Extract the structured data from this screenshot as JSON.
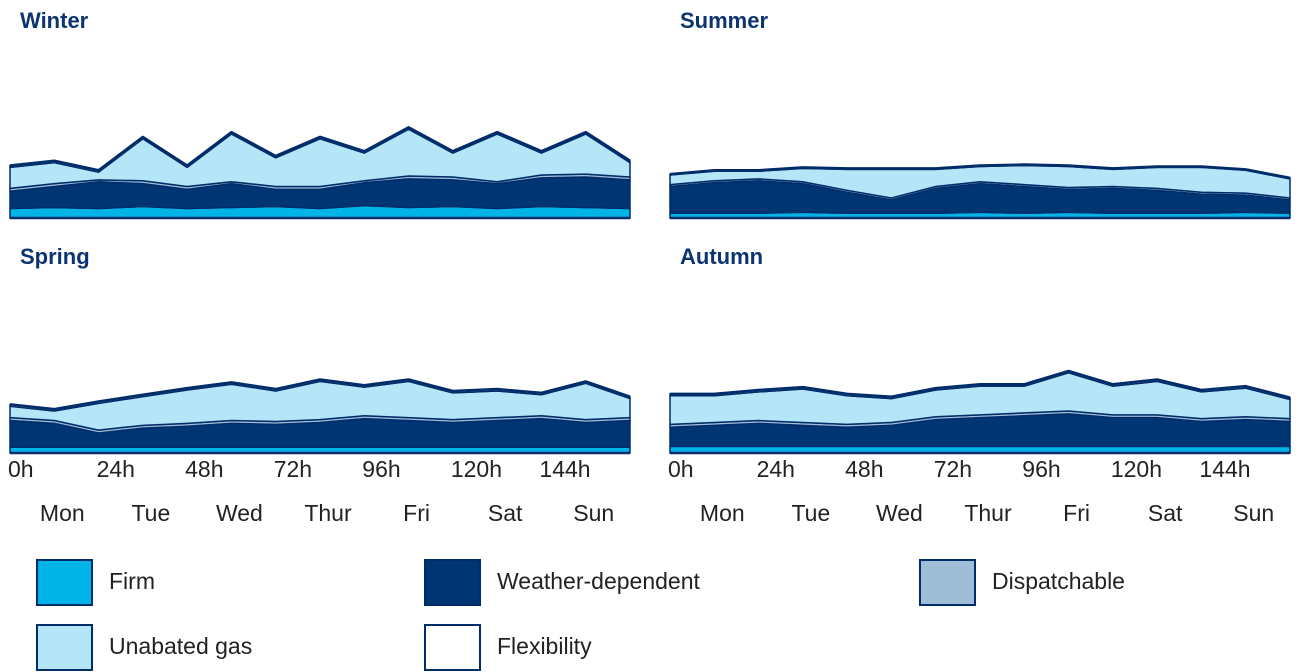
{
  "legend": [
    {
      "name": "Firm",
      "color": "#00b4e8"
    },
    {
      "name": "Weather-dependent",
      "color": "#003574"
    },
    {
      "name": "Dispatchable",
      "color": "#a0bdd8"
    },
    {
      "name": "Unabated gas",
      "color": "#b4e6f8"
    },
    {
      "name": "Flexibility",
      "color": "#ffffff"
    }
  ],
  "chart_data": [
    {
      "type": "stacked_area",
      "title": "Winter",
      "x": [
        0,
        12,
        24,
        36,
        48,
        60,
        72,
        84,
        96,
        108,
        120,
        132,
        144,
        156,
        168
      ],
      "xlim": [
        0,
        168
      ],
      "ylim": [
        0,
        110
      ],
      "series": [
        {
          "values": [
            10,
            11,
            10,
            12,
            10,
            11,
            12,
            10,
            13,
            11,
            12,
            10,
            12,
            11,
            10
          ]
        },
        {
          "values": [
            18,
            22,
            28,
            24,
            20,
            25,
            18,
            20,
            24,
            30,
            28,
            26,
            30,
            32,
            30
          ]
        },
        {
          "values": [
            3,
            3,
            2,
            3,
            3,
            2,
            3,
            3,
            2,
            3,
            3,
            2,
            3,
            3,
            3
          ]
        },
        {
          "values": [
            22,
            22,
            8,
            44,
            20,
            50,
            30,
            50,
            29,
            49,
            25,
            50,
            23,
            42,
            15
          ]
        },
        {
          "values": [
            2,
            2,
            2,
            2,
            2,
            2,
            2,
            2,
            2,
            2,
            2,
            2,
            2,
            2,
            2
          ]
        }
      ]
    },
    {
      "type": "stacked_area",
      "title": "Summer",
      "x": [
        0,
        12,
        24,
        36,
        48,
        60,
        72,
        84,
        96,
        108,
        120,
        132,
        144,
        156,
        168
      ],
      "xlim": [
        0,
        168
      ],
      "ylim": [
        0,
        110
      ],
      "series": [
        {
          "values": [
            5,
            5,
            5,
            6,
            5,
            5,
            5,
            6,
            5,
            6,
            5,
            5,
            5,
            6,
            5
          ]
        },
        {
          "values": [
            28,
            32,
            34,
            30,
            22,
            14,
            26,
            30,
            28,
            24,
            26,
            24,
            20,
            18,
            14
          ]
        },
        {
          "values": [
            2,
            2,
            2,
            2,
            2,
            2,
            2,
            2,
            2,
            2,
            2,
            2,
            2,
            2,
            2
          ]
        },
        {
          "values": [
            10,
            10,
            8,
            14,
            22,
            30,
            18,
            16,
            20,
            22,
            18,
            22,
            26,
            24,
            20
          ]
        },
        {
          "values": [
            1,
            1,
            1,
            1,
            1,
            1,
            1,
            1,
            1,
            1,
            1,
            1,
            1,
            1,
            1
          ]
        }
      ]
    },
    {
      "type": "stacked_area",
      "title": "Spring",
      "x": [
        0,
        12,
        24,
        36,
        48,
        60,
        72,
        84,
        96,
        108,
        120,
        132,
        144,
        156,
        168
      ],
      "xlim": [
        0,
        168
      ],
      "ylim": [
        0,
        110
      ],
      "xticks": [
        {
          "value": 0,
          "label": "0h"
        },
        {
          "value": 24,
          "label": "24h"
        },
        {
          "value": 48,
          "label": "48h"
        },
        {
          "value": 72,
          "label": "72h"
        },
        {
          "value": 96,
          "label": "96h"
        },
        {
          "value": 120,
          "label": "120h"
        },
        {
          "value": 144,
          "label": "144h"
        }
      ],
      "categories": [
        "Mon",
        "Tue",
        "Wed",
        "Thur",
        "Fri",
        "Sat",
        "Sun"
      ],
      "series": [
        {
          "values": [
            6,
            6,
            6,
            6,
            6,
            6,
            6,
            6,
            6,
            6,
            6,
            6,
            6,
            6,
            6
          ]
        },
        {
          "values": [
            28,
            25,
            15,
            20,
            22,
            25,
            24,
            26,
            30,
            28,
            26,
            28,
            30,
            26,
            28
          ]
        },
        {
          "values": [
            3,
            3,
            3,
            3,
            3,
            3,
            3,
            3,
            3,
            3,
            3,
            3,
            3,
            3,
            3
          ]
        },
        {
          "values": [
            12,
            10,
            28,
            30,
            35,
            38,
            32,
            40,
            30,
            38,
            28,
            28,
            22,
            38,
            20
          ]
        },
        {
          "values": [
            2,
            2,
            2,
            2,
            2,
            2,
            2,
            2,
            2,
            2,
            2,
            2,
            2,
            2,
            2
          ]
        }
      ]
    },
    {
      "type": "stacked_area",
      "title": "Autumn",
      "x": [
        0,
        12,
        24,
        36,
        48,
        60,
        72,
        84,
        96,
        108,
        120,
        132,
        144,
        156,
        168
      ],
      "xlim": [
        0,
        168
      ],
      "ylim": [
        0,
        110
      ],
      "xticks": [
        {
          "value": 0,
          "label": "0h"
        },
        {
          "value": 24,
          "label": "24h"
        },
        {
          "value": 48,
          "label": "48h"
        },
        {
          "value": 72,
          "label": "72h"
        },
        {
          "value": 96,
          "label": "96h"
        },
        {
          "value": 120,
          "label": "120h"
        },
        {
          "value": 144,
          "label": "144h"
        }
      ],
      "categories": [
        "Mon",
        "Tue",
        "Wed",
        "Thur",
        "Fri",
        "Sat",
        "Sun"
      ],
      "series": [
        {
          "values": [
            7,
            7,
            7,
            7,
            7,
            7,
            7,
            7,
            7,
            7,
            7,
            7,
            7,
            7,
            7
          ]
        },
        {
          "values": [
            20,
            22,
            24,
            22,
            20,
            22,
            28,
            30,
            32,
            34,
            30,
            30,
            26,
            28,
            26
          ]
        },
        {
          "values": [
            3,
            3,
            3,
            3,
            3,
            3,
            3,
            3,
            3,
            3,
            3,
            3,
            3,
            3,
            3
          ]
        },
        {
          "values": [
            30,
            28,
            30,
            35,
            30,
            25,
            28,
            30,
            28,
            40,
            30,
            35,
            28,
            30,
            20
          ]
        },
        {
          "values": [
            2,
            2,
            2,
            2,
            2,
            2,
            2,
            2,
            2,
            2,
            2,
            2,
            2,
            2,
            2
          ]
        }
      ]
    }
  ]
}
